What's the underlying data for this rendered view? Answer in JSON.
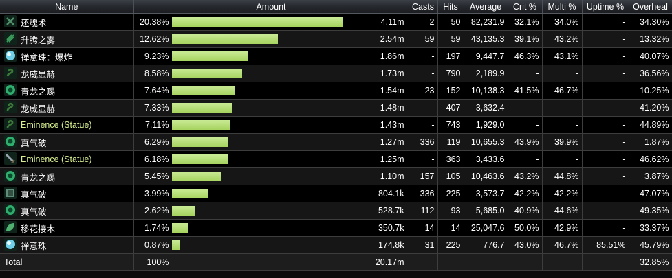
{
  "columns": {
    "name": "Name",
    "amount": "Amount",
    "casts": "Casts",
    "hits": "Hits",
    "average": "Average",
    "crit": "Crit %",
    "multi": "Multi %",
    "uptime": "Uptime %",
    "overheal": "Overheal"
  },
  "rows": [
    {
      "name": "还魂术",
      "icon": "revival-icon",
      "icon_color": "#4f8f6a",
      "pct": "20.38%",
      "bar": 0.9,
      "amount": "4.11m",
      "casts": "2",
      "hits": "50",
      "average": "82,231.9",
      "crit": "32.1%",
      "multi": "34.0%",
      "uptime": "-",
      "overheal": "34.30%"
    },
    {
      "name": "升腾之雾",
      "icon": "uplifting-mist-icon",
      "icon_color": "#3a9a5a",
      "pct": "12.62%",
      "bar": 0.56,
      "amount": "2.54m",
      "casts": "59",
      "hits": "59",
      "average": "43,135.3",
      "crit": "39.1%",
      "multi": "43.2%",
      "uptime": "-",
      "overheal": "13.32%"
    },
    {
      "name": "禅意珠：爆炸",
      "icon": "zen-sphere-detonate-icon",
      "icon_color": "#6fd0e8",
      "pct": "9.23%",
      "bar": 0.4,
      "amount": "1.86m",
      "casts": "-",
      "hits": "197",
      "average": "9,447.7",
      "crit": "46.3%",
      "multi": "43.1%",
      "uptime": "-",
      "overheal": "40.07%"
    },
    {
      "name": "龙威显赫",
      "icon": "serpent-icon",
      "icon_color": "#3d7a3a",
      "pct": "8.58%",
      "bar": 0.37,
      "amount": "1.73m",
      "casts": "-",
      "hits": "790",
      "average": "2,189.9",
      "crit": "-",
      "multi": "-",
      "uptime": "-",
      "overheal": "36.56%"
    },
    {
      "name": "青龙之赐",
      "icon": "jade-orb-icon",
      "icon_color": "#2fae6e",
      "pct": "7.64%",
      "bar": 0.33,
      "amount": "1.54m",
      "casts": "23",
      "hits": "152",
      "average": "10,138.3",
      "crit": "41.5%",
      "multi": "46.7%",
      "uptime": "-",
      "overheal": "10.25%"
    },
    {
      "name": "龙威显赫",
      "icon": "serpent-icon",
      "icon_color": "#3d7a3a",
      "pct": "7.33%",
      "bar": 0.32,
      "amount": "1.48m",
      "casts": "-",
      "hits": "407",
      "average": "3,632.4",
      "crit": "-",
      "multi": "-",
      "uptime": "-",
      "overheal": "41.20%"
    },
    {
      "name": "Eminence (Statue)",
      "icon": "serpent-icon",
      "icon_color": "#3d7a3a",
      "pet": true,
      "pct": "7.11%",
      "bar": 0.31,
      "amount": "1.43m",
      "casts": "-",
      "hits": "743",
      "average": "1,929.0",
      "crit": "-",
      "multi": "-",
      "uptime": "-",
      "overheal": "44.89%"
    },
    {
      "name": "真气破",
      "icon": "jade-orb-icon",
      "icon_color": "#2fae6e",
      "pct": "6.29%",
      "bar": 0.3,
      "amount": "1.27m",
      "casts": "336",
      "hits": "119",
      "average": "10,655.3",
      "crit": "43.9%",
      "multi": "39.9%",
      "uptime": "-",
      "overheal": "1.87%"
    },
    {
      "name": "Eminence (Statue)",
      "icon": "sword-icon",
      "icon_color": "#9aa4b0",
      "pet": true,
      "pct": "6.18%",
      "bar": 0.295,
      "amount": "1.25m",
      "casts": "-",
      "hits": "363",
      "average": "3,433.6",
      "crit": "-",
      "multi": "-",
      "uptime": "-",
      "overheal": "46.62%"
    },
    {
      "name": "青龙之赐",
      "icon": "jade-orb-icon",
      "icon_color": "#2fae6e",
      "pct": "5.45%",
      "bar": 0.26,
      "amount": "1.10m",
      "casts": "157",
      "hits": "105",
      "average": "10,463.6",
      "crit": "43.2%",
      "multi": "44.8%",
      "uptime": "-",
      "overheal": "3.87%"
    },
    {
      "name": "真气破",
      "icon": "tiger-fist-icon",
      "icon_color": "#5f8f7a",
      "pct": "3.99%",
      "bar": 0.19,
      "amount": "804.1k",
      "casts": "336",
      "hits": "225",
      "average": "3,573.7",
      "crit": "42.2%",
      "multi": "42.2%",
      "uptime": "-",
      "overheal": "47.07%"
    },
    {
      "name": "真气破",
      "icon": "jade-orb-icon",
      "icon_color": "#2fae6e",
      "pct": "2.62%",
      "bar": 0.125,
      "amount": "528.7k",
      "casts": "112",
      "hits": "93",
      "average": "5,685.0",
      "crit": "40.9%",
      "multi": "44.6%",
      "uptime": "-",
      "overheal": "49.35%"
    },
    {
      "name": "移花接木",
      "icon": "leaf-icon",
      "icon_color": "#4fb070",
      "pct": "1.74%",
      "bar": 0.085,
      "amount": "350.7k",
      "casts": "14",
      "hits": "14",
      "average": "25,047.6",
      "crit": "50.0%",
      "multi": "42.9%",
      "uptime": "-",
      "overheal": "33.37%"
    },
    {
      "name": "禅意珠",
      "icon": "zen-sphere-icon",
      "icon_color": "#6fd0e8",
      "pct": "0.87%",
      "bar": 0.04,
      "amount": "174.8k",
      "casts": "31",
      "hits": "225",
      "average": "776.7",
      "crit": "43.0%",
      "multi": "46.7%",
      "uptime": "85.51%",
      "overheal": "45.79%"
    }
  ],
  "total": {
    "label": "Total",
    "pct": "100%",
    "amount": "20.17m",
    "overheal": "32.85%"
  }
}
